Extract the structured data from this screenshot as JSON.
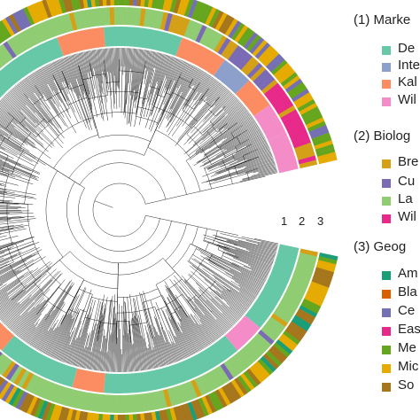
{
  "ring_numbers": [
    "1",
    "2",
    "3"
  ],
  "legend": [
    {
      "title": "(1) Marke",
      "items": [
        {
          "label": "De",
          "color": "#66c8a7"
        },
        {
          "label": "Inte",
          "color": "#8da0cb"
        },
        {
          "label": "Kal",
          "color": "#fc8d62"
        },
        {
          "label": "Wil",
          "color": "#f38cc7"
        }
      ]
    },
    {
      "title": "(2) Biolog",
      "items": [
        {
          "label": "Bre",
          "color": "#d4a017"
        },
        {
          "label": "Cu",
          "color": "#7b6bb5"
        },
        {
          "label": "La",
          "color": "#8fcc72"
        },
        {
          "label": "Wil",
          "color": "#e7298a"
        }
      ]
    },
    {
      "title": "(3) Geog",
      "items": [
        {
          "label": "Am",
          "color": "#1b9e77"
        },
        {
          "label": "Bla",
          "color": "#d95f02"
        },
        {
          "label": "Ce",
          "color": "#7570b3"
        },
        {
          "label": "Eas",
          "color": "#e7298a"
        },
        {
          "label": "Me",
          "color": "#66a61e"
        },
        {
          "label": "Mic",
          "color": "#e6ab02"
        },
        {
          "label": "So",
          "color": "#a6761d"
        }
      ]
    }
  ]
}
